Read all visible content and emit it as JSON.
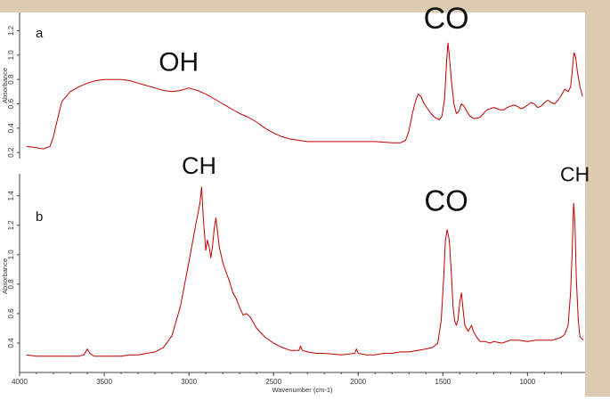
{
  "chart_data": [
    {
      "type": "line",
      "panel": "a",
      "ylabel": "Absorbance",
      "ylim": [
        0.15,
        1.35
      ],
      "yticks": [
        "0.2",
        "0.4",
        "0.6",
        "0.8",
        "1.0",
        "1.2"
      ],
      "xlim": [
        4000,
        660
      ],
      "annotations": [
        {
          "text": "OH",
          "x": 3060,
          "y": 0.87
        },
        {
          "text": "CO",
          "x": 1480,
          "y": 1.22
        }
      ],
      "series": [
        {
          "color": "#c00000",
          "points": [
            [
              3960,
              0.25
            ],
            [
              3900,
              0.24
            ],
            [
              3860,
              0.23
            ],
            [
              3820,
              0.25
            ],
            [
              3800,
              0.33
            ],
            [
              3780,
              0.45
            ],
            [
              3750,
              0.62
            ],
            [
              3700,
              0.7
            ],
            [
              3650,
              0.74
            ],
            [
              3600,
              0.77
            ],
            [
              3550,
              0.79
            ],
            [
              3500,
              0.8
            ],
            [
              3450,
              0.8
            ],
            [
              3400,
              0.8
            ],
            [
              3350,
              0.79
            ],
            [
              3300,
              0.77
            ],
            [
              3250,
              0.75
            ],
            [
              3200,
              0.73
            ],
            [
              3150,
              0.71
            ],
            [
              3100,
              0.7
            ],
            [
              3050,
              0.71
            ],
            [
              3000,
              0.73
            ],
            [
              2950,
              0.71
            ],
            [
              2900,
              0.68
            ],
            [
              2850,
              0.64
            ],
            [
              2800,
              0.6
            ],
            [
              2750,
              0.56
            ],
            [
              2700,
              0.52
            ],
            [
              2650,
              0.49
            ],
            [
              2600,
              0.45
            ],
            [
              2550,
              0.4
            ],
            [
              2500,
              0.36
            ],
            [
              2450,
              0.33
            ],
            [
              2400,
              0.31
            ],
            [
              2350,
              0.3
            ],
            [
              2300,
              0.29
            ],
            [
              2200,
              0.29
            ],
            [
              2100,
              0.29
            ],
            [
              2000,
              0.29
            ],
            [
              1900,
              0.29
            ],
            [
              1800,
              0.28
            ],
            [
              1750,
              0.28
            ],
            [
              1720,
              0.3
            ],
            [
              1700,
              0.38
            ],
            [
              1680,
              0.52
            ],
            [
              1660,
              0.63
            ],
            [
              1645,
              0.68
            ],
            [
              1630,
              0.66
            ],
            [
              1610,
              0.6
            ],
            [
              1590,
              0.56
            ],
            [
              1570,
              0.52
            ],
            [
              1550,
              0.49
            ],
            [
              1520,
              0.47
            ],
            [
              1505,
              0.5
            ],
            [
              1490,
              0.64
            ],
            [
              1478,
              0.95
            ],
            [
              1470,
              1.1
            ],
            [
              1462,
              1.0
            ],
            [
              1450,
              0.8
            ],
            [
              1435,
              0.6
            ],
            [
              1420,
              0.52
            ],
            [
              1405,
              0.54
            ],
            [
              1390,
              0.6
            ],
            [
              1375,
              0.58
            ],
            [
              1360,
              0.54
            ],
            [
              1340,
              0.5
            ],
            [
              1320,
              0.48
            ],
            [
              1300,
              0.48
            ],
            [
              1280,
              0.49
            ],
            [
              1260,
              0.52
            ],
            [
              1240,
              0.55
            ],
            [
              1220,
              0.56
            ],
            [
              1200,
              0.57
            ],
            [
              1180,
              0.56
            ],
            [
              1160,
              0.55
            ],
            [
              1140,
              0.55
            ],
            [
              1120,
              0.57
            ],
            [
              1100,
              0.58
            ],
            [
              1080,
              0.59
            ],
            [
              1060,
              0.58
            ],
            [
              1040,
              0.56
            ],
            [
              1020,
              0.57
            ],
            [
              1000,
              0.59
            ],
            [
              980,
              0.61
            ],
            [
              960,
              0.6
            ],
            [
              940,
              0.57
            ],
            [
              920,
              0.58
            ],
            [
              900,
              0.61
            ],
            [
              880,
              0.63
            ],
            [
              860,
              0.61
            ],
            [
              840,
              0.6
            ],
            [
              820,
              0.63
            ],
            [
              800,
              0.67
            ],
            [
              780,
              0.72
            ],
            [
              760,
              0.7
            ],
            [
              745,
              0.74
            ],
            [
              735,
              0.88
            ],
            [
              725,
              1.02
            ],
            [
              715,
              0.98
            ],
            [
              705,
              0.86
            ],
            [
              690,
              0.74
            ],
            [
              675,
              0.66
            ]
          ]
        }
      ]
    },
    {
      "type": "line",
      "panel": "b",
      "xlabel": "Wavenumber (cm-1)",
      "ylabel": "Absorbance",
      "ylim": [
        0.2,
        1.55
      ],
      "yticks": [
        "0.4",
        "0.6",
        "0.8",
        "1.0",
        "1.2",
        "1.4"
      ],
      "xlim": [
        4000,
        660
      ],
      "xticks": [
        "4000",
        "3500",
        "3000",
        "2500",
        "2000",
        "1500",
        "1000"
      ],
      "annotations": [
        {
          "text": "CH",
          "x": 2940,
          "y": 1.55
        },
        {
          "text": "CO",
          "x": 1480,
          "y": 1.3
        },
        {
          "text": "CH",
          "x": 720,
          "y": 1.5
        }
      ],
      "series": [
        {
          "color": "#c00000",
          "points": [
            [
              3960,
              0.32
            ],
            [
              3900,
              0.31
            ],
            [
              3850,
              0.31
            ],
            [
              3800,
              0.31
            ],
            [
              3750,
              0.31
            ],
            [
              3700,
              0.31
            ],
            [
              3650,
              0.31
            ],
            [
              3620,
              0.32
            ],
            [
              3600,
              0.36
            ],
            [
              3585,
              0.33
            ],
            [
              3560,
              0.31
            ],
            [
              3500,
              0.31
            ],
            [
              3450,
              0.31
            ],
            [
              3400,
              0.31
            ],
            [
              3350,
              0.32
            ],
            [
              3300,
              0.32
            ],
            [
              3250,
              0.33
            ],
            [
              3200,
              0.34
            ],
            [
              3150,
              0.37
            ],
            [
              3100,
              0.45
            ],
            [
              3050,
              0.65
            ],
            [
              3000,
              0.95
            ],
            [
              2960,
              1.2
            ],
            [
              2935,
              1.35
            ],
            [
              2925,
              1.46
            ],
            [
              2915,
              1.25
            ],
            [
              2900,
              1.03
            ],
            [
              2890,
              1.1
            ],
            [
              2880,
              1.05
            ],
            [
              2870,
              0.98
            ],
            [
              2860,
              1.06
            ],
            [
              2850,
              1.18
            ],
            [
              2840,
              1.25
            ],
            [
              2830,
              1.15
            ],
            [
              2820,
              1.05
            ],
            [
              2800,
              0.95
            ],
            [
              2780,
              0.88
            ],
            [
              2760,
              0.82
            ],
            [
              2740,
              0.74
            ],
            [
              2720,
              0.7
            ],
            [
              2700,
              0.64
            ],
            [
              2680,
              0.59
            ],
            [
              2660,
              0.6
            ],
            [
              2640,
              0.58
            ],
            [
              2620,
              0.54
            ],
            [
              2600,
              0.5
            ],
            [
              2550,
              0.44
            ],
            [
              2500,
              0.4
            ],
            [
              2450,
              0.37
            ],
            [
              2400,
              0.35
            ],
            [
              2350,
              0.35
            ],
            [
              2340,
              0.38
            ],
            [
              2330,
              0.35
            ],
            [
              2300,
              0.34
            ],
            [
              2250,
              0.33
            ],
            [
              2200,
              0.33
            ],
            [
              2100,
              0.32
            ],
            [
              2020,
              0.33
            ],
            [
              2010,
              0.36
            ],
            [
              2000,
              0.33
            ],
            [
              1950,
              0.32
            ],
            [
              1900,
              0.32
            ],
            [
              1850,
              0.33
            ],
            [
              1800,
              0.33
            ],
            [
              1750,
              0.34
            ],
            [
              1700,
              0.34
            ],
            [
              1650,
              0.35
            ],
            [
              1600,
              0.36
            ],
            [
              1560,
              0.37
            ],
            [
              1530,
              0.4
            ],
            [
              1510,
              0.55
            ],
            [
              1495,
              0.85
            ],
            [
              1485,
              1.1
            ],
            [
              1475,
              1.17
            ],
            [
              1462,
              1.1
            ],
            [
              1450,
              0.88
            ],
            [
              1440,
              0.65
            ],
            [
              1430,
              0.55
            ],
            [
              1420,
              0.52
            ],
            [
              1410,
              0.56
            ],
            [
              1400,
              0.68
            ],
            [
              1390,
              0.74
            ],
            [
              1380,
              0.62
            ],
            [
              1370,
              0.52
            ],
            [
              1350,
              0.48
            ],
            [
              1340,
              0.5
            ],
            [
              1330,
              0.52
            ],
            [
              1320,
              0.48
            ],
            [
              1300,
              0.44
            ],
            [
              1280,
              0.41
            ],
            [
              1250,
              0.41
            ],
            [
              1220,
              0.4
            ],
            [
              1200,
              0.41
            ],
            [
              1150,
              0.4
            ],
            [
              1100,
              0.42
            ],
            [
              1050,
              0.42
            ],
            [
              1000,
              0.41
            ],
            [
              950,
              0.42
            ],
            [
              900,
              0.42
            ],
            [
              850,
              0.42
            ],
            [
              800,
              0.44
            ],
            [
              780,
              0.46
            ],
            [
              760,
              0.52
            ],
            [
              745,
              0.75
            ],
            [
              735,
              1.05
            ],
            [
              728,
              1.35
            ],
            [
              720,
              1.22
            ],
            [
              712,
              0.85
            ],
            [
              700,
              0.55
            ],
            [
              690,
              0.44
            ],
            [
              680,
              0.43
            ],
            [
              670,
              0.42
            ]
          ]
        }
      ]
    }
  ]
}
